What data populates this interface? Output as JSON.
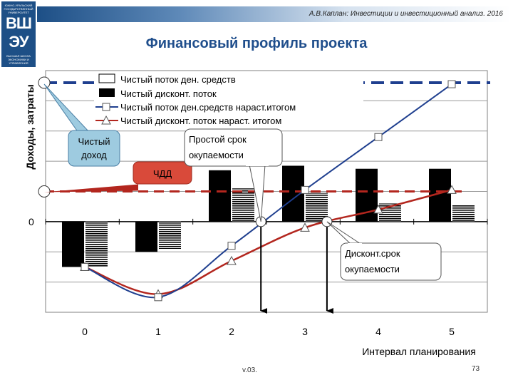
{
  "header": {
    "author_line": "А.В.Каплан: Инвестиции и инвестиционный анализ. 2016",
    "logo_top": "ЮЖНО-УРАЛЬСКИЙ ГОСУДАРСТВЕННЫЙ УНИВЕРСИТЕТ",
    "logo_letters_1": "ВШ",
    "logo_letters_2": "ЭУ",
    "logo_bottom": "ВЫСШАЯ ШКОЛА ЭКОНОМИКИ И УПРАВЛЕНИЯ"
  },
  "title": "Финансовый профиль проекта",
  "footer": {
    "version": "v.03.",
    "page": "73"
  },
  "colors": {
    "title": "#1f4e8c",
    "cumulative_cf": "#1f3f8f",
    "cumulative_dcf": "#b3261e",
    "npv_box": "#d94a3a",
    "income_box": "#9ecbe0"
  },
  "chart_data": {
    "type": "bar",
    "categories": [
      "0",
      "1",
      "2",
      "3",
      "4",
      "5"
    ],
    "xlabel": "Интервал планирования",
    "ylabel": "Доходы, затраты",
    "zero_label": "0",
    "ylim": [
      -3,
      5
    ],
    "grid": true,
    "legend": "top",
    "series": [
      {
        "name": "Чистый поток ден. средств",
        "kind": "bar",
        "style": "solid-black",
        "values": [
          -1.5,
          -1.0,
          1.7,
          1.85,
          1.75,
          1.75
        ]
      },
      {
        "name": "Чистый дисконт. поток",
        "kind": "bar",
        "style": "hatched",
        "values": [
          -1.5,
          -0.9,
          1.1,
          0.95,
          0.6,
          0.55
        ]
      },
      {
        "name": "Чистый поток ден.средств нараст.итогом",
        "kind": "line",
        "color": "#1f3f8f",
        "marker": "square",
        "values": [
          -1.5,
          -2.5,
          -0.8,
          1.05,
          2.8,
          4.55
        ]
      },
      {
        "name": "Чистый дисконт. поток нараст. итогом",
        "kind": "line",
        "color": "#b3261e",
        "marker": "triangle",
        "values": [
          -1.5,
          -2.4,
          -1.3,
          -0.2,
          0.4,
          1.05
        ]
      }
    ],
    "reference_lines": [
      {
        "label": "Чистый доход",
        "value": 4.6,
        "color": "#1f3f8f"
      },
      {
        "label": "ЧДД",
        "value": 1.0,
        "color": "#b3261e"
      }
    ],
    "annotations": [
      {
        "label": "Простой срок окупаемости",
        "lines": [
          "Простой срок",
          "окупаемости"
        ],
        "x": 2.4
      },
      {
        "label": "Дисконт.срок окупаемости",
        "lines": [
          "Дисконт.срок",
          "окупаемости"
        ],
        "x": 3.3
      }
    ]
  }
}
